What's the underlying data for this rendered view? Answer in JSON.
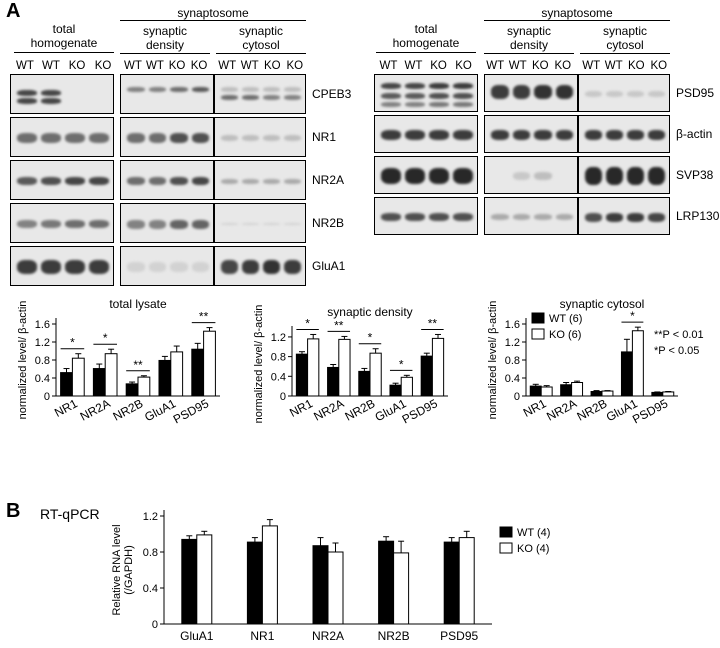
{
  "panel_a": {
    "letter": "A",
    "header_total": "total\nhomogenate",
    "header_syn": "synaptosome",
    "header_density": "synaptic\ndensity",
    "header_cytosol": "synaptic\ncytosol",
    "left_lanes": [
      "WT",
      "WT",
      "KO",
      "KO"
    ],
    "left_blots": [
      "CPEB3",
      "NR1",
      "NR2A",
      "NR2B",
      "GluA1"
    ],
    "right_blots": [
      "PSD95",
      "β-actin",
      "SVP38",
      "LRP130"
    ]
  },
  "panel_b": {
    "letter": "B",
    "method": "RT-qPCR"
  },
  "colors": {
    "wt": "#000000",
    "ko": "#ffffff"
  },
  "chart_data": [
    {
      "type": "bar",
      "title": "total lysate",
      "ylabel": "normalized level/ β-actin",
      "categories": [
        "NR1",
        "NR2A",
        "NR2B",
        "GluA1",
        "PSD95"
      ],
      "ylim": [
        0,
        1.6
      ],
      "yticks": [
        0,
        0.4,
        0.8,
        1.2,
        1.6
      ],
      "series": [
        {
          "name": "WT (6)",
          "values": [
            0.52,
            0.61,
            0.27,
            0.79,
            1.04
          ],
          "errors": [
            0.09,
            0.1,
            0.04,
            0.09,
            0.13
          ]
        },
        {
          "name": "KO (6)",
          "values": [
            0.84,
            0.94,
            0.42,
            0.98,
            1.44
          ],
          "errors": [
            0.1,
            0.1,
            0.03,
            0.13,
            0.08
          ]
        }
      ],
      "significance": [
        "*",
        "*",
        "**",
        "",
        "**"
      ]
    },
    {
      "type": "bar",
      "title": "synaptic density",
      "ylabel": "normalized level/ β-actin",
      "categories": [
        "NR1",
        "NR2A",
        "NR2B",
        "GluA1",
        "PSD95"
      ],
      "ylim": [
        0,
        1.3
      ],
      "yticks": [
        0,
        0.4,
        0.8,
        1.2
      ],
      "series": [
        {
          "name": "WT (6)",
          "values": [
            0.85,
            0.58,
            0.5,
            0.22,
            0.81
          ],
          "errors": [
            0.05,
            0.06,
            0.06,
            0.04,
            0.06
          ]
        },
        {
          "name": "KO (6)",
          "values": [
            1.16,
            1.15,
            0.87,
            0.38,
            1.17
          ],
          "errors": [
            0.09,
            0.06,
            0.09,
            0.04,
            0.08
          ]
        }
      ],
      "significance": [
        "*",
        "**",
        "*",
        "*",
        "**"
      ]
    },
    {
      "type": "bar",
      "title": "synaptic cytosol",
      "ylabel": "normalized level/ β-actin",
      "categories": [
        "NR1",
        "NR2A",
        "NR2B",
        "GluA1",
        "PSD95"
      ],
      "ylim": [
        0,
        1.6
      ],
      "yticks": [
        0,
        0.4,
        0.8,
        1.2,
        1.6
      ],
      "series": [
        {
          "name": "WT (6)",
          "values": [
            0.22,
            0.25,
            0.1,
            0.98,
            0.08
          ],
          "errors": [
            0.04,
            0.05,
            0.02,
            0.28,
            0.01
          ]
        },
        {
          "name": "KO (6)",
          "values": [
            0.2,
            0.3,
            0.11,
            1.45,
            0.09
          ],
          "errors": [
            0.03,
            0.03,
            0.01,
            0.08,
            0.01
          ]
        }
      ],
      "significance": [
        "",
        "",
        "",
        "*",
        ""
      ],
      "legend": [
        "WT (6)",
        "KO (6)"
      ],
      "legend_position": "top-left",
      "p_notes": [
        "**P < 0.01",
        "*P < 0.05"
      ]
    },
    {
      "type": "bar",
      "title": "",
      "ylabel": "Relative RNA level (/GAPDH)",
      "categories": [
        "GluA1",
        "NR1",
        "NR2A",
        "NR2B",
        "PSD95"
      ],
      "ylim": [
        0,
        1.2
      ],
      "yticks": [
        0,
        0.4,
        0.8,
        1.2
      ],
      "series": [
        {
          "name": "WT (4)",
          "values": [
            0.94,
            0.91,
            0.87,
            0.92,
            0.91
          ],
          "errors": [
            0.04,
            0.05,
            0.09,
            0.05,
            0.05
          ]
        },
        {
          "name": "KO (4)",
          "values": [
            0.99,
            1.09,
            0.8,
            0.79,
            0.96
          ],
          "errors": [
            0.04,
            0.07,
            0.1,
            0.13,
            0.07
          ]
        }
      ],
      "legend": [
        "WT (4)",
        "KO (4)"
      ],
      "legend_position": "right"
    }
  ]
}
